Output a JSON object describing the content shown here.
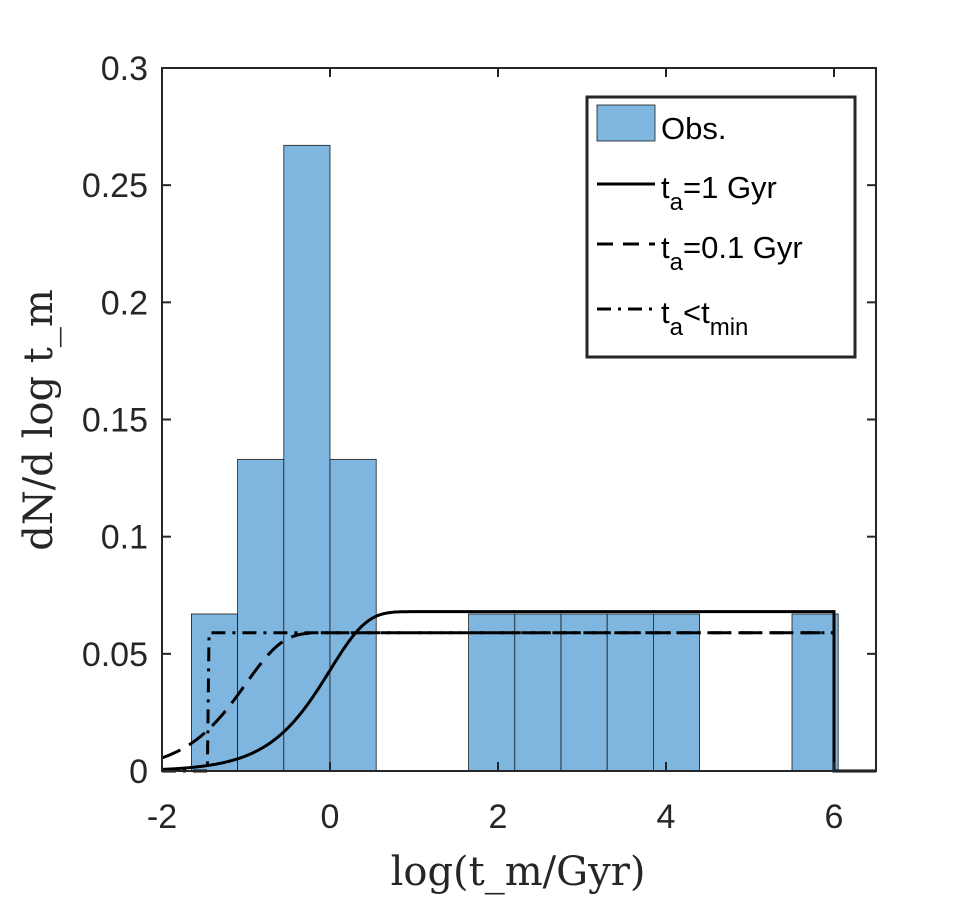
{
  "chart_data": {
    "type": "bar",
    "xlabel": "log(t_m/Gyr)",
    "ylabel": "dN/d log t_m",
    "xlim": [
      -2,
      6.5
    ],
    "ylim": [
      0,
      0.3
    ],
    "xticks": [
      "-2",
      "0",
      "2",
      "4",
      "6"
    ],
    "xtick_values": [
      -2,
      0,
      2,
      4,
      6
    ],
    "yticks": [
      "0",
      "0.05",
      "0.1",
      "0.15",
      "0.2",
      "0.25",
      "0.3"
    ],
    "ytick_values": [
      0,
      0.05,
      0.1,
      0.15,
      0.2,
      0.25,
      0.3
    ],
    "grid": false,
    "legend_position": "top-right",
    "histogram": {
      "name": "Obs.",
      "color": "#7EB6E0",
      "bin_width": 0.55,
      "bins": [
        {
          "left": -1.65,
          "value": 0.067
        },
        {
          "left": -1.1,
          "value": 0.133
        },
        {
          "left": -0.55,
          "value": 0.267
        },
        {
          "left": 0.0,
          "value": 0.133
        },
        {
          "left": 1.65,
          "value": 0.067
        },
        {
          "left": 2.2,
          "value": 0.067
        },
        {
          "left": 2.75,
          "value": 0.067
        },
        {
          "left": 3.3,
          "value": 0.067
        },
        {
          "left": 3.85,
          "value": 0.067
        },
        {
          "left": 5.5,
          "value": 0.067
        }
      ]
    },
    "series": [
      {
        "name": "t_a=1 Gyr",
        "style": "solid",
        "t_a": 1.0,
        "plateau": 0.068
      },
      {
        "name": "t_a=0.1 Gyr",
        "style": "dashed",
        "t_a": 0.1,
        "plateau": 0.059
      },
      {
        "name": "t_a<t_min",
        "style": "dashdot",
        "plateau": 0.059,
        "step_at": -1.45
      }
    ],
    "curve_range": [
      -2,
      6
    ],
    "legend": [
      {
        "main": "Obs.",
        "sub": "",
        "tail": "",
        "tail_sub": ""
      },
      {
        "main": "t",
        "sub": "a",
        "tail": "=1 Gyr",
        "tail_sub": ""
      },
      {
        "main": "t",
        "sub": "a",
        "tail": "=0.1 Gyr",
        "tail_sub": ""
      },
      {
        "main": "t",
        "sub": "a",
        "tail": "<t",
        "tail_sub": "min"
      }
    ]
  }
}
